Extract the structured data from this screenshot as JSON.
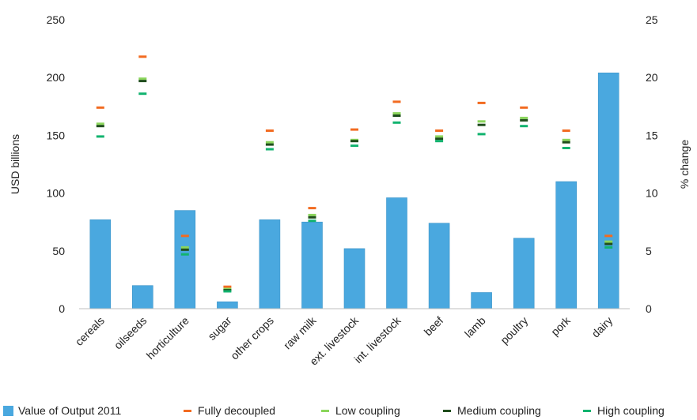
{
  "chart_data": {
    "type": "bar",
    "categories": [
      "cereals",
      "oilseeds",
      "horticulture",
      "sugar",
      "other crops",
      "raw milk",
      "ext. livestock",
      "int. livestock",
      "beef",
      "lamb",
      "poultry",
      "pork",
      "dairy"
    ],
    "bar_series": {
      "name": "Value of Output 2011",
      "axis": "left",
      "values": [
        77,
        20,
        85,
        6,
        77,
        75,
        52,
        96,
        74,
        14,
        61,
        110,
        204
      ]
    },
    "marker_series": [
      {
        "name": "Fully decoupled",
        "axis": "right",
        "values": [
          17.4,
          21.8,
          6.3,
          1.9,
          15.4,
          8.7,
          15.5,
          17.9,
          15.4,
          17.8,
          17.4,
          15.4,
          6.3
        ]
      },
      {
        "name": "Low coupling",
        "axis": "right",
        "values": [
          16.0,
          19.9,
          5.3,
          1.7,
          14.4,
          8.1,
          14.6,
          16.9,
          14.9,
          16.2,
          16.5,
          14.6,
          5.8
        ]
      },
      {
        "name": "Medium coupling",
        "axis": "right",
        "values": [
          15.8,
          19.7,
          5.1,
          1.6,
          14.2,
          7.9,
          14.5,
          16.7,
          14.7,
          15.9,
          16.3,
          14.4,
          5.6
        ]
      },
      {
        "name": "High coupling",
        "axis": "right",
        "values": [
          14.9,
          18.6,
          4.7,
          1.5,
          13.8,
          7.6,
          14.1,
          16.1,
          14.5,
          15.1,
          15.8,
          13.9,
          5.3
        ]
      }
    ],
    "ylabel": "USD billions",
    "ylim": [
      0,
      250
    ],
    "yticks": [
      0,
      50,
      100,
      150,
      200,
      250
    ],
    "y2label": "% change",
    "y2lim": [
      0,
      25
    ],
    "y2ticks": [
      0,
      5,
      10,
      15,
      20,
      25
    ],
    "grid": false,
    "legend_position": "bottom",
    "colors": {
      "bar": "#4aa8df",
      "bar_edge": "#3c94c8",
      "Fully decoupled": "#f26b21",
      "Low coupling": "#8bd65c",
      "Medium coupling": "#1f4d1c",
      "High coupling": "#12b36f",
      "axis": "#bfbfbf"
    }
  }
}
